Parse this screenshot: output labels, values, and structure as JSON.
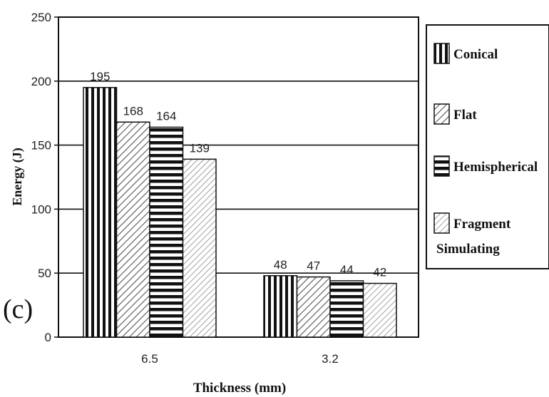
{
  "chart_data": {
    "type": "bar",
    "title": "",
    "panel_label": "(c)",
    "xlabel": "Thickness (mm)",
    "ylabel": "Energy (J)",
    "categories": [
      "6.5",
      "3.2"
    ],
    "ylim": [
      0,
      250
    ],
    "yticks": [
      0,
      50,
      100,
      150,
      200,
      250
    ],
    "grid": "horizontal",
    "legend_position": "right",
    "series": [
      {
        "name": "Conical",
        "pattern": "vertical-stripes",
        "values": [
          195,
          48
        ]
      },
      {
        "name": "Flat",
        "pattern": "diagonal-hatch",
        "values": [
          168,
          47
        ]
      },
      {
        "name": "Hemispherical",
        "pattern": "horizontal-stripes",
        "values": [
          164,
          44
        ]
      },
      {
        "name": "Fragment Simulating",
        "name_lines": [
          "Fragment",
          "Simulating"
        ],
        "pattern": "diagonal-hatch-light",
        "values": [
          139,
          42
        ]
      }
    ]
  }
}
